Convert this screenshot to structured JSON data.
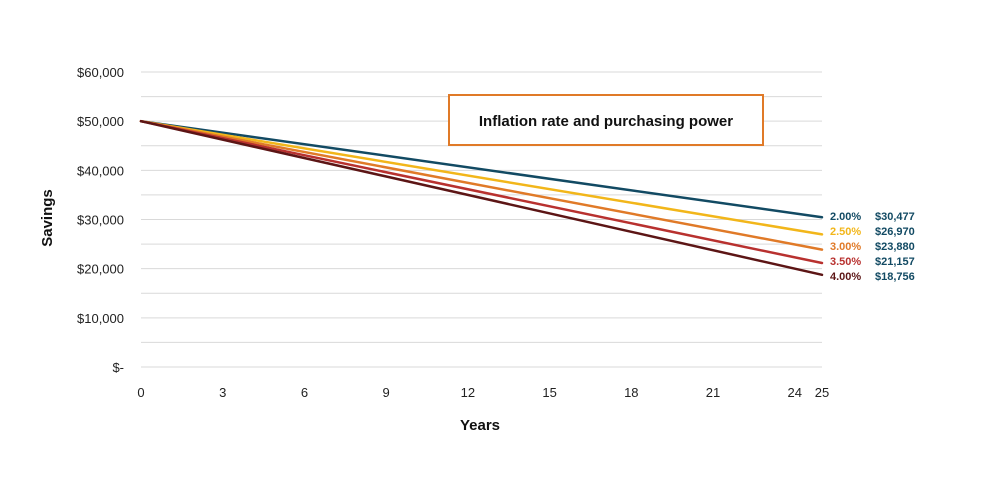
{
  "chart_data": {
    "type": "line",
    "title": "Inflation rate and purchasing power",
    "xlabel": "Years",
    "ylabel": "Savings",
    "xlim": [
      0,
      25
    ],
    "ylim": [
      0,
      60000
    ],
    "x_ticks": [
      0,
      3,
      6,
      9,
      12,
      15,
      18,
      21,
      24,
      25
    ],
    "x_tick_labels": [
      "0",
      "3",
      "6",
      "9",
      "12",
      "15",
      "18",
      "21",
      "24",
      "25"
    ],
    "y_ticks": [
      0,
      10000,
      20000,
      30000,
      40000,
      50000,
      60000
    ],
    "y_tick_labels": [
      "$-",
      "$10,000",
      "$20,000",
      "$30,000",
      "$40,000",
      "$50,000",
      "$60,000"
    ],
    "grid": true,
    "legend": "end-of-line labels",
    "series": [
      {
        "name": "2.00%",
        "color": "#124a63",
        "x": [
          0,
          25
        ],
        "values": [
          50000,
          30477
        ],
        "end_value_label": "$30,477"
      },
      {
        "name": "2.50%",
        "color": "#f2b61a",
        "x": [
          0,
          25
        ],
        "values": [
          50000,
          26970
        ],
        "end_value_label": "$26,970"
      },
      {
        "name": "3.00%",
        "color": "#e07a28",
        "x": [
          0,
          25
        ],
        "values": [
          50000,
          23880
        ],
        "end_value_label": "$23,880"
      },
      {
        "name": "3.50%",
        "color": "#b8312f",
        "x": [
          0,
          25
        ],
        "values": [
          50000,
          21157
        ],
        "end_value_label": "$21,157"
      },
      {
        "name": "4.00%",
        "color": "#5c1515",
        "x": [
          0,
          25
        ],
        "values": [
          50000,
          18756
        ],
        "end_value_label": "$18,756"
      }
    ],
    "colors": {
      "grid": "#d9d9d9",
      "title_box_border": "#e07a28",
      "value_label": "#124a63"
    }
  }
}
